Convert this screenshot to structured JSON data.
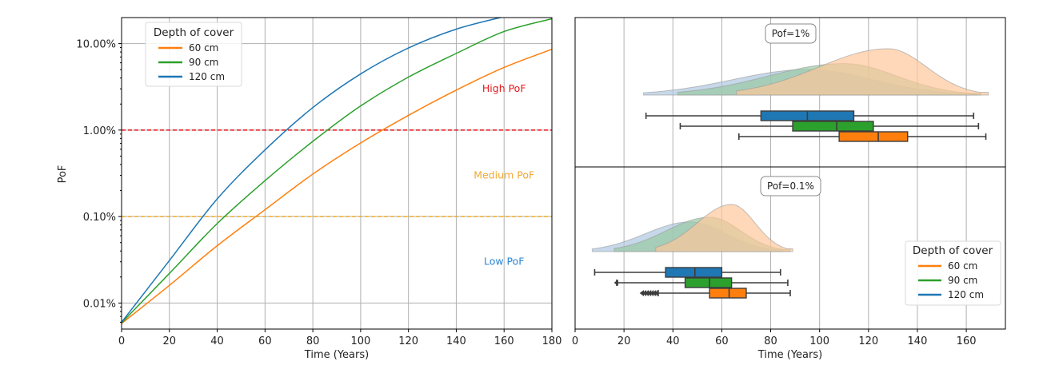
{
  "chart_data": [
    {
      "type": "line",
      "title": "",
      "xlabel": "Time (Years)",
      "ylabel": "PoF",
      "xlim": [
        0,
        180
      ],
      "ylim_percent": [
        0.005,
        20
      ],
      "yscale": "log",
      "grid": true,
      "xticks": [
        0,
        20,
        40,
        60,
        80,
        100,
        120,
        140,
        160,
        180
      ],
      "yticks": [
        {
          "value": 0.01,
          "label": "0.01%"
        },
        {
          "value": 0.1,
          "label": "0.10%"
        },
        {
          "value": 1,
          "label": "1.00%"
        },
        {
          "value": 10,
          "label": "10.00%"
        }
      ],
      "legend": {
        "title": "Depth of cover",
        "placement": "upper-left",
        "entries": [
          "60 cm",
          "90 cm",
          "120 cm"
        ]
      },
      "thresholds": [
        {
          "name": "high-threshold",
          "value": 1,
          "color": "#e8141c",
          "style": "dashed"
        },
        {
          "name": "medium-threshold",
          "value": 0.1,
          "color": "#f0ac28",
          "style": "dashed"
        }
      ],
      "zones": [
        {
          "label": "High PoF",
          "color": "#e31a1c",
          "x": 160,
          "y": 3
        },
        {
          "label": "Medium PoF",
          "color": "#f0a830",
          "x": 160,
          "y": 0.3
        },
        {
          "label": "Low PoF",
          "color": "#2b86d6",
          "x": 160,
          "y": 0.03
        }
      ],
      "x": [
        0,
        20,
        40,
        60,
        80,
        100,
        120,
        140,
        160,
        180
      ],
      "series": [
        {
          "name": "60 cm",
          "color": "#ff7f0e",
          "values": [
            0.0058,
            0.016,
            0.046,
            0.12,
            0.31,
            0.71,
            1.48,
            2.9,
            5.3,
            8.6
          ]
        },
        {
          "name": "90 cm",
          "color": "#2ca02c",
          "values": [
            0.0059,
            0.022,
            0.083,
            0.26,
            0.74,
            1.9,
            4.1,
            7.7,
            13.8,
            19.4
          ]
        },
        {
          "name": "120 cm",
          "color": "#1f77b4",
          "values": [
            0.006,
            0.031,
            0.16,
            0.59,
            1.82,
            4.46,
            8.9,
            14.7,
            20.5,
            null
          ]
        }
      ]
    },
    {
      "type": "boxplot",
      "subtype": "violin+box",
      "xlabel": "Time (Years)",
      "xlim": [
        0,
        176
      ],
      "grid": true,
      "xticks": [
        0,
        20,
        40,
        60,
        80,
        100,
        120,
        140,
        160
      ],
      "legend": {
        "title": "Depth of cover",
        "placement": "lower-right",
        "entries": [
          "60 cm",
          "90 cm",
          "120 cm"
        ]
      },
      "panels": [
        {
          "label": "Pof=1%",
          "series": [
            {
              "name": "120 cm",
              "color": "#1f77b4",
              "violin_color": "#aec7e0",
              "whisker_low": 29,
              "q1": 76,
              "median": 95,
              "q3": 114,
              "whisker_high": 163,
              "outliers": [],
              "density_peak": 95,
              "density_height": 0.55
            },
            {
              "name": "90 cm",
              "color": "#2ca02c",
              "violin_color": "#98c9a3",
              "whisker_low": 43,
              "q1": 89,
              "median": 107,
              "q3": 122,
              "whisker_high": 165,
              "outliers": [],
              "density_peak": 110,
              "density_height": 0.68
            },
            {
              "name": "60 cm",
              "color": "#ff7f0e",
              "violin_color": "#fdc89a",
              "whisker_low": 67,
              "q1": 108,
              "median": 124,
              "q3": 136,
              "whisker_high": 168,
              "outliers": [],
              "density_peak": 128,
              "density_height": 1.0
            }
          ]
        },
        {
          "label": "Pof=0.1%",
          "series": [
            {
              "name": "120 cm",
              "color": "#1f77b4",
              "violin_color": "#aec7e0",
              "whisker_low": 8,
              "q1": 37,
              "median": 49,
              "q3": 60,
              "whisker_high": 84,
              "outliers": [],
              "density_peak": 47,
              "density_height": 0.63
            },
            {
              "name": "90 cm",
              "color": "#2ca02c",
              "violin_color": "#98c9a3",
              "whisker_low": 17,
              "q1": 45,
              "median": 55,
              "q3": 64,
              "whisker_high": 87,
              "outliers": [
                16.5
              ],
              "density_peak": 55,
              "density_height": 0.73
            },
            {
              "name": "60 cm",
              "color": "#ff7f0e",
              "violin_color": "#fdc89a",
              "whisker_low": 34,
              "q1": 55,
              "median": 63,
              "q3": 70,
              "whisker_high": 88,
              "outliers": [
                27,
                28,
                29,
                30,
                31,
                32,
                33
              ],
              "density_peak": 64,
              "density_height": 1.0
            }
          ]
        }
      ]
    }
  ]
}
